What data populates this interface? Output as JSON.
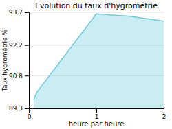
{
  "chart_data": {
    "type": "area",
    "title": "Evolution du taux d'hygrométrie",
    "xlabel": "heure par heure",
    "ylabel": "Taux hygrométrie %",
    "x": [
      0.07,
      0.12,
      1.0,
      1.5,
      2.0
    ],
    "values": [
      89.7,
      90.05,
      93.63,
      93.52,
      93.3
    ],
    "color": "#66ccdd",
    "xlim": [
      0,
      2
    ],
    "ylim": [
      89.3,
      93.7
    ],
    "xticks": [
      0,
      1,
      2
    ],
    "yticks": [
      89.3,
      90.8,
      92.2,
      93.7
    ],
    "grid": true
  }
}
